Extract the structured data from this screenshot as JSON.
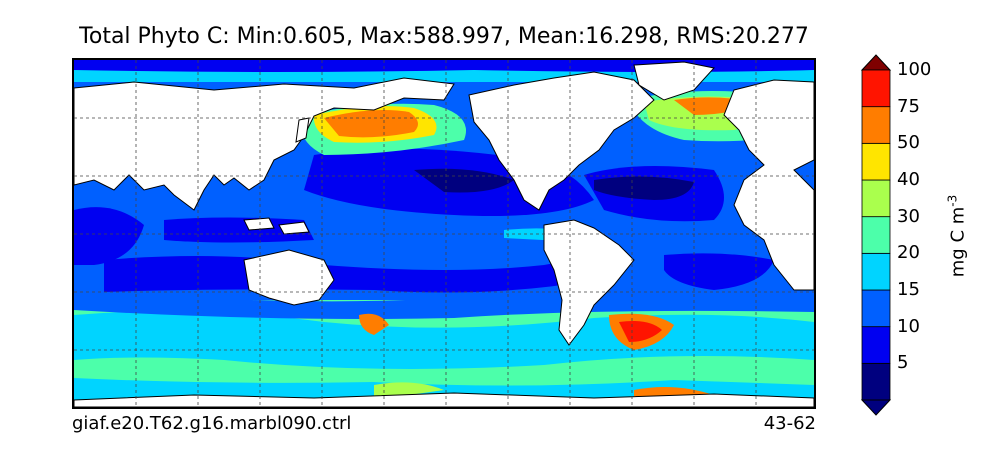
{
  "title": "Total Phyto C: Min:0.605, Max:588.997, Mean:16.298, RMS:20.277",
  "footer": {
    "case": "giaf.e20.T62.g16.marbl090.ctrl",
    "years": "43-62"
  },
  "colorbar": {
    "label": "mg C m",
    "label_exponent": "-3",
    "ticks": [
      "5",
      "10",
      "15",
      "20",
      "30",
      "40",
      "50",
      "75",
      "100"
    ],
    "levels": [
      {
        "range": "<5 (under)",
        "color": "#00007f"
      },
      {
        "range": "0-5",
        "color": "#00007f"
      },
      {
        "range": "5-10",
        "color": "#0000f1"
      },
      {
        "range": "10-15",
        "color": "#0060ff"
      },
      {
        "range": "15-20",
        "color": "#00d4ff"
      },
      {
        "range": "20-30",
        "color": "#4cffaa"
      },
      {
        "range": "30-40",
        "color": "#aaff4d"
      },
      {
        "range": "40-50",
        "color": "#ffe500"
      },
      {
        "range": "50-75",
        "color": "#ff7d00"
      },
      {
        "range": "75-100",
        "color": "#ff1400"
      },
      {
        "range": ">100",
        "color": "#7f0000"
      }
    ]
  },
  "map": {
    "field": "Total Phyto C",
    "land_color": "#ffffff",
    "gridlines": "dashed"
  }
}
